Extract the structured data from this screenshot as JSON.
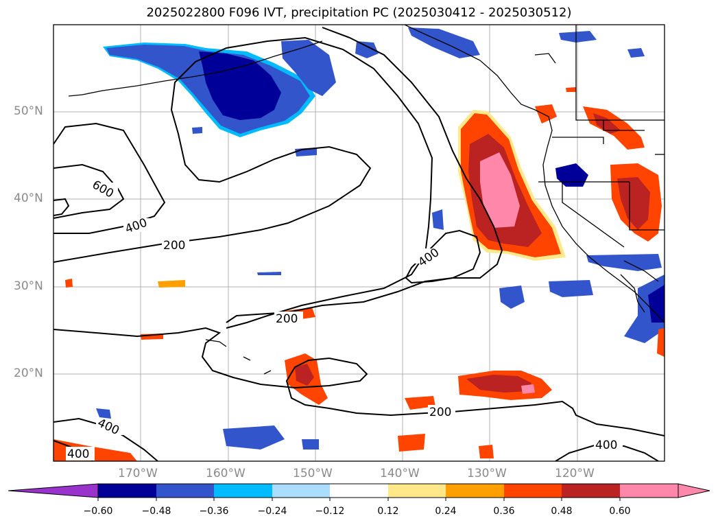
{
  "title": "2025022800 F096 IVT, precipitation PC (2025030412 - 2025030512)",
  "lat_labels": [
    "50°N",
    "40°N",
    "30°N",
    "20°N"
  ],
  "lon_labels": [
    "170°W",
    "160°W",
    "150°W",
    "140°W",
    "130°W",
    "120°W"
  ],
  "contour_labels": [
    "600",
    "400",
    "200",
    "400",
    "200",
    "200",
    "400",
    "400",
    "400"
  ],
  "colorbar": {
    "ticks": [
      "−0.60",
      "−0.48",
      "−0.36",
      "−0.24",
      "−0.12",
      "0.12",
      "0.24",
      "0.36",
      "0.48",
      "0.60"
    ],
    "colors": [
      "#9933cc",
      "#000099",
      "#3355cc",
      "#00bbff",
      "#aaddff",
      "#ffffff",
      "#ffe88a",
      "#ffa000",
      "#ff4400",
      "#bb2222",
      "#ff88aa"
    ]
  }
}
